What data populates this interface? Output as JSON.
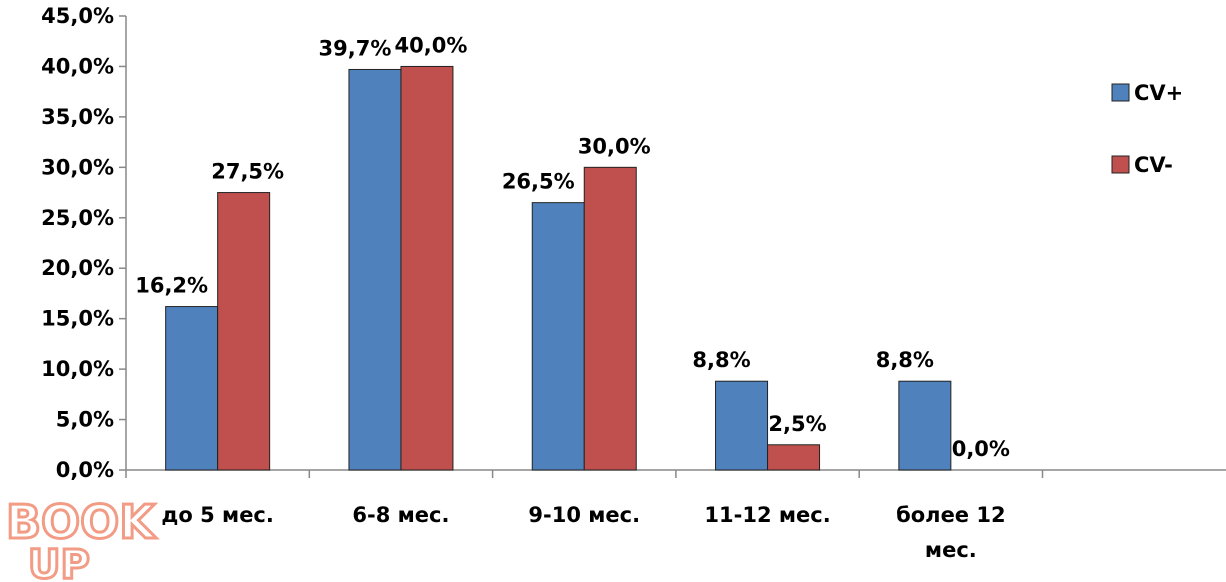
{
  "chart_data": {
    "type": "bar",
    "categories": [
      "до 5 мес.",
      "6-8 мес.",
      "9-10 мес.",
      "11-12 мес.",
      "более 12 мес."
    ],
    "category_lines": [
      [
        "до 5 мес."
      ],
      [
        "6-8 мес."
      ],
      [
        "9-10 мес."
      ],
      [
        "11-12 мес."
      ],
      [
        "более 12",
        "мес."
      ]
    ],
    "series": [
      {
        "name": "CV+",
        "color": "#4f81bd",
        "values": [
          16.2,
          39.7,
          26.5,
          8.8,
          8.8
        ],
        "labels": [
          "16,2%",
          "39,7%",
          "26,5%",
          "8,8%",
          "8,8%"
        ]
      },
      {
        "name": "CV-",
        "color": "#c0504d",
        "values": [
          27.5,
          40.0,
          30.0,
          2.5,
          0.0
        ],
        "labels": [
          "27,5%",
          "40,0%",
          "30,0%",
          "2,5%",
          "0,0%"
        ]
      }
    ],
    "ylim": [
      0,
      45
    ],
    "yticks": [
      "0,0%",
      "5,0%",
      "10,0%",
      "15,0%",
      "20,0%",
      "25,0%",
      "30,0%",
      "35,0%",
      "40,0%",
      "45,0%"
    ],
    "title": "",
    "xlabel": "",
    "ylabel": "",
    "grid": false,
    "legend_position": "right"
  },
  "watermark": {
    "text_top": "BOOK",
    "text_bottom": "UP"
  }
}
